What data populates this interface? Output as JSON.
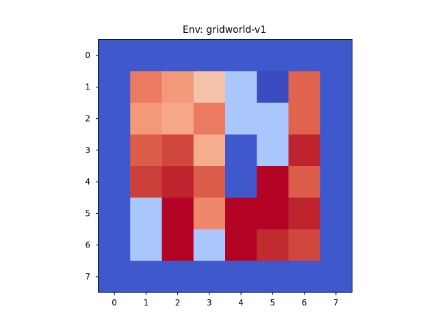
{
  "title": "Env: gridworld-v1",
  "x_ticks": [
    "0",
    "1",
    "2",
    "3",
    "4",
    "5",
    "6",
    "7"
  ],
  "y_ticks": [
    "0",
    "1",
    "2",
    "3",
    "4",
    "5",
    "6",
    "7"
  ],
  "grid": {
    "rows": 8,
    "cols": 8,
    "colors": [
      [
        "#3f58cb",
        "#3f58cb",
        "#3f58cb",
        "#3f58cb",
        "#3f58cb",
        "#3f58cb",
        "#3f58cb",
        "#3f58cb"
      ],
      [
        "#3f58cb",
        "#ea7b61",
        "#f4987a",
        "#f5c2aa",
        "#aac7fd",
        "#3a4cc0",
        "#e1634e",
        "#3f58cb"
      ],
      [
        "#3f58cb",
        "#f4987a",
        "#f5a788",
        "#ea7b61",
        "#aac7fd",
        "#aac7fd",
        "#e1634e",
        "#3f58cb"
      ],
      [
        "#3f58cb",
        "#dc5d4a",
        "#d0473d",
        "#f5ad8c",
        "#3f58cb",
        "#aac7fd",
        "#be242e",
        "#3f58cb"
      ],
      [
        "#3f58cb",
        "#cc403a",
        "#be242e",
        "#dc5d4a",
        "#3f58cb",
        "#b40426",
        "#dc5d4a",
        "#3f58cb"
      ],
      [
        "#3f58cb",
        "#aac7fd",
        "#b40426",
        "#ef886b",
        "#b40426",
        "#b40426",
        "#be242e",
        "#3f58cb"
      ],
      [
        "#3f58cb",
        "#aac7fd",
        "#b40426",
        "#aac7fd",
        "#b40426",
        "#c12b30",
        "#d0473d",
        "#3f58cb"
      ],
      [
        "#3f58cb",
        "#3f58cb",
        "#3f58cb",
        "#3f58cb",
        "#3f58cb",
        "#3f58cb",
        "#3f58cb",
        "#3f58cb"
      ]
    ]
  }
}
